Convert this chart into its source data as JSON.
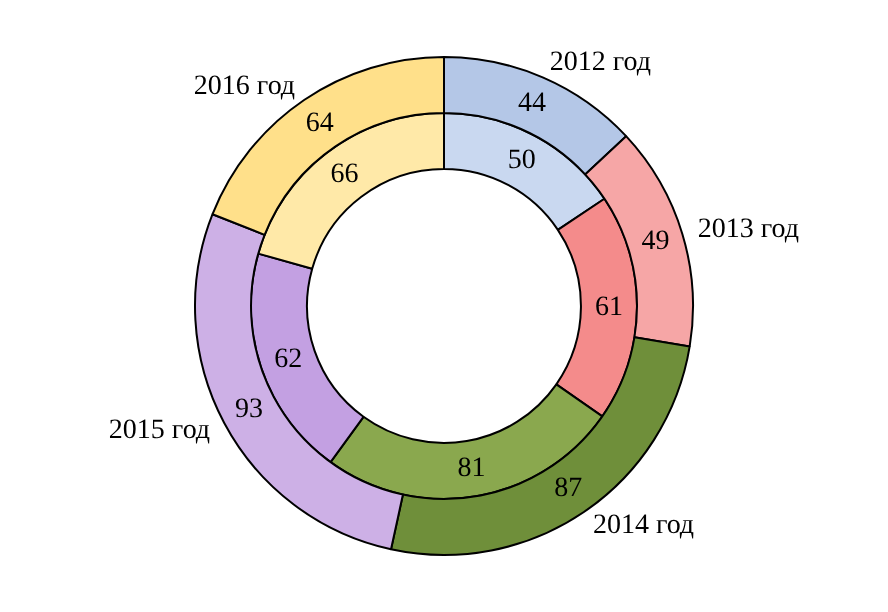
{
  "chart_data": {
    "type": "donut",
    "categories": [
      "2012 год",
      "2013 год",
      "2014 год",
      "2015 год",
      "2016 год"
    ],
    "series": [
      {
        "values": [
          44,
          49,
          87,
          93,
          64
        ],
        "colors": [
          "#b4c7e7",
          "#f6a6a6",
          "#6f8f3a",
          "#cdb0e6",
          "#ffe08a"
        ]
      },
      {
        "values": [
          50,
          61,
          81,
          62,
          66
        ],
        "colors": [
          "#c9d8f0",
          "#f48b8b",
          "#8aa84e",
          "#c3a0e2",
          "#ffe9a8"
        ]
      }
    ],
    "data_labels": true,
    "legend": false
  }
}
